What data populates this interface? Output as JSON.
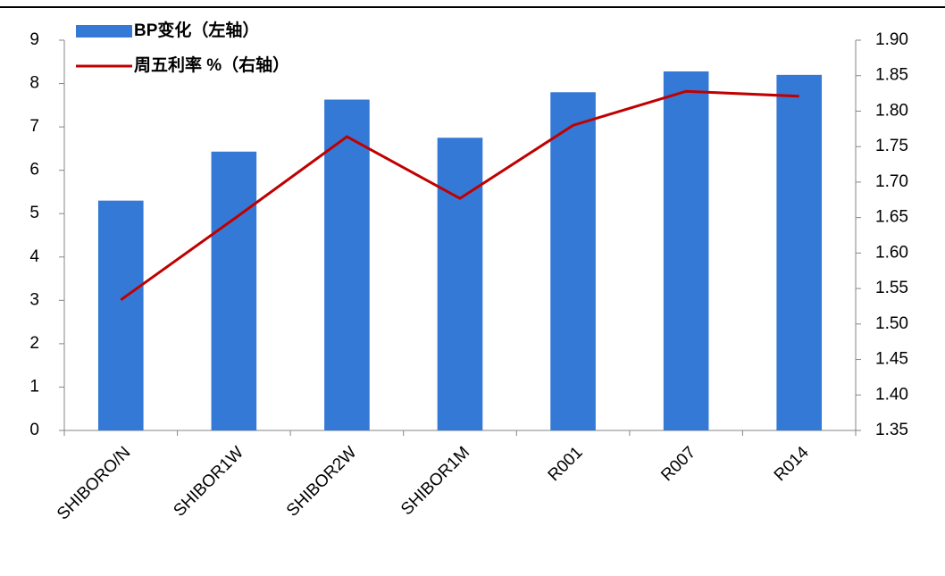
{
  "chart_data": {
    "type": "bar",
    "categories": [
      "SHIBORO/N",
      "SHIBOR1W",
      "SHIBOR2W",
      "SHIBOR1M",
      "R001",
      "R007",
      "R014"
    ],
    "series": [
      {
        "name": "BP变化（左轴）",
        "type": "bar",
        "color": "#3579d6",
        "values": [
          5.3,
          6.43,
          7.63,
          6.75,
          7.8,
          8.28,
          8.2
        ]
      },
      {
        "name": "周五利率 %（右轴）",
        "type": "line",
        "axis": "y2",
        "color": "#c00000",
        "values": [
          1.534,
          1.648,
          1.764,
          1.677,
          1.78,
          1.828,
          1.821
        ]
      }
    ],
    "ylim": [
      0,
      9
    ],
    "yticks": [
      0,
      1,
      2,
      3,
      4,
      5,
      6,
      7,
      8,
      9
    ],
    "y2lim": [
      1.35,
      1.9
    ],
    "y2ticks": [
      {
        "value": 1.35,
        "label": "1.35"
      },
      {
        "value": 1.4,
        "label": "1.40"
      },
      {
        "value": 1.45,
        "label": "1.45"
      },
      {
        "value": 1.5,
        "label": "1.50"
      },
      {
        "value": 1.55,
        "label": "1.55"
      },
      {
        "value": 1.6,
        "label": "1.60"
      },
      {
        "value": 1.65,
        "label": "1.65"
      },
      {
        "value": 1.7,
        "label": "1.70"
      },
      {
        "value": 1.75,
        "label": "1.75"
      },
      {
        "value": 1.8,
        "label": "1.80"
      },
      {
        "value": 1.85,
        "label": "1.85"
      },
      {
        "value": 1.9,
        "label": "1.90"
      }
    ],
    "legend": "top-left"
  }
}
